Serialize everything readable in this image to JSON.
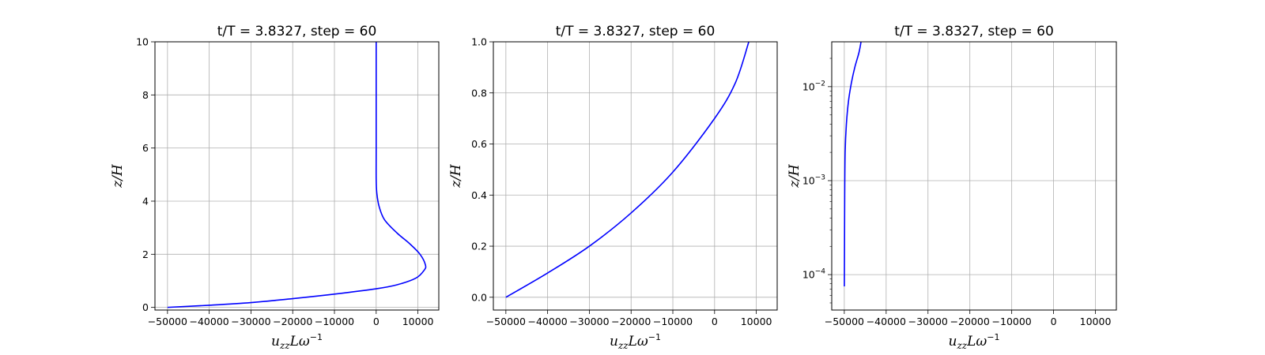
{
  "chart_data": [
    {
      "type": "line",
      "title": "t/T = 3.8327, step = 60",
      "xlabel": "u_zz L ω^-1",
      "ylabel": "z/H",
      "xlim": [
        -53000,
        15000
      ],
      "ylim": [
        -0.1,
        10
      ],
      "yscale": "linear",
      "grid": true,
      "xticks": [
        -50000,
        -40000,
        -30000,
        -20000,
        -10000,
        0,
        10000
      ],
      "xtick_labels": [
        "−50000",
        "−40000",
        "−30000",
        "−20000",
        "−10000",
        "0",
        "10000"
      ],
      "yticks": [
        0,
        2,
        4,
        6,
        8,
        10
      ],
      "ytick_labels": [
        "0",
        "2",
        "4",
        "6",
        "8",
        "10"
      ],
      "series": [
        {
          "color": "#0000ff",
          "x": [
            -50000,
            -40000,
            -30000,
            -20000,
            -10000,
            0,
            5000,
            9500,
            11500,
            11800,
            10500,
            8000,
            5000,
            2000,
            700,
            150,
            0,
            0,
            0,
            0
          ],
          "y": [
            0,
            0.08,
            0.18,
            0.33,
            0.5,
            0.7,
            0.85,
            1.1,
            1.4,
            1.6,
            2.0,
            2.4,
            2.8,
            3.3,
            3.8,
            4.3,
            4.8,
            6.0,
            8.0,
            10.0
          ]
        }
      ]
    },
    {
      "type": "line",
      "title": "t/T = 3.8327, step = 60",
      "xlabel": "u_zz L ω^-1",
      "ylabel": "z/H",
      "xlim": [
        -53000,
        15000
      ],
      "ylim": [
        -0.05,
        1.0
      ],
      "yscale": "linear",
      "grid": true,
      "xticks": [
        -50000,
        -40000,
        -30000,
        -20000,
        -10000,
        0,
        10000
      ],
      "xtick_labels": [
        "−50000",
        "−40000",
        "−30000",
        "−20000",
        "−10000",
        "0",
        "10000"
      ],
      "yticks": [
        0,
        0.2,
        0.4,
        0.6,
        0.8,
        1.0
      ],
      "ytick_labels": [
        "0.0",
        "0.2",
        "0.4",
        "0.6",
        "0.8",
        "1.0"
      ],
      "series": [
        {
          "color": "#0000ff",
          "x": [
            -50000,
            -40000,
            -30000,
            -20000,
            -10000,
            0,
            5000,
            8200
          ],
          "y": [
            0,
            0.095,
            0.2,
            0.33,
            0.49,
            0.7,
            0.84,
            1.0
          ]
        }
      ]
    },
    {
      "type": "line",
      "title": "t/T = 3.8327, step = 60",
      "xlabel": "u_zz L ω^-1",
      "ylabel": "z/H",
      "xlim": [
        -53000,
        15000
      ],
      "ylim": [
        4.2e-05,
        0.03
      ],
      "yscale": "log",
      "grid": true,
      "xticks": [
        -50000,
        -40000,
        -30000,
        -20000,
        -10000,
        0,
        10000
      ],
      "xtick_labels": [
        "−50000",
        "−40000",
        "−30000",
        "−20000",
        "−10000",
        "0",
        "10000"
      ],
      "yticks": [
        0.0001,
        0.001,
        0.01
      ],
      "ytick_labels": [
        "10",
        "10",
        "10"
      ],
      "ytick_exponents": [
        "−4",
        "−3",
        "−2"
      ],
      "series": [
        {
          "color": "#0000ff",
          "x": [
            -49990,
            -49950,
            -49900,
            -49800,
            -49500,
            -49000,
            -48300,
            -47500,
            -46500,
            -46000
          ],
          "y": [
            7.5e-05,
            0.0002,
            0.0007,
            0.002,
            0.004,
            0.007,
            0.011,
            0.016,
            0.023,
            0.03
          ]
        }
      ]
    }
  ]
}
